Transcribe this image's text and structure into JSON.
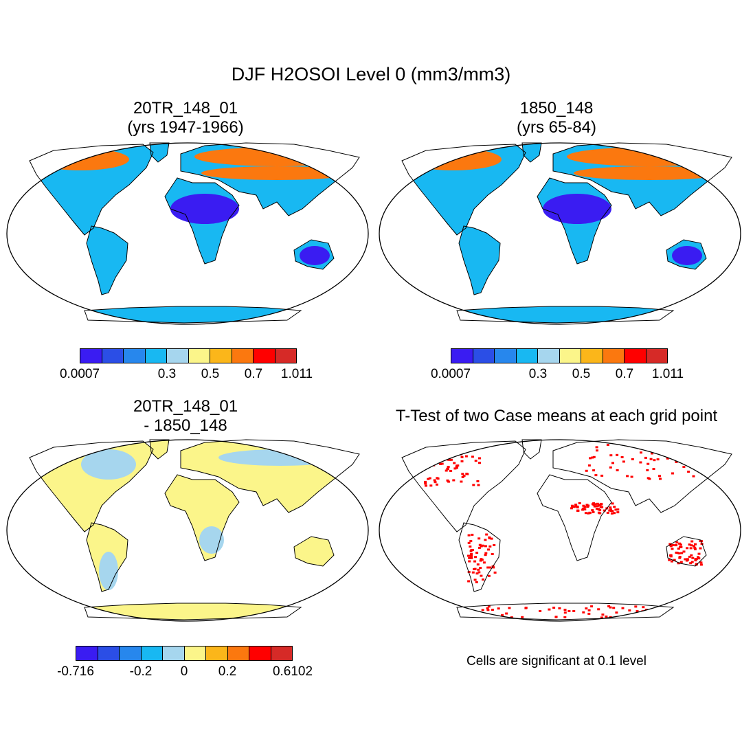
{
  "title": "DJF H2OSOI Level 0 (mm3/mm3)",
  "panels": {
    "top_left": {
      "title_line1": "20TR_148_01",
      "title_line2": "(yrs 1947-1966)"
    },
    "top_right": {
      "title_line1": "1850_148",
      "title_line2": "(yrs 65-84)"
    },
    "bottom_left": {
      "title_line1": "20TR_148_01",
      "title_line2": "- 1850_148"
    },
    "bottom_right": {
      "title": "T-Test of two Case means at each grid point",
      "note": "Cells are significant at 0.1 level",
      "significant_color": "#ff0000"
    }
  },
  "colorbars": {
    "swatch_colors": [
      "#3a1cf2",
      "#2b4ee6",
      "#2787ed",
      "#18b8f2",
      "#a6d6ee",
      "#fbf58a",
      "#fbb61a",
      "#fb780f",
      "#ff0000",
      "#d62a27"
    ],
    "field": {
      "labels": [
        "0.0007",
        "0.3",
        "0.5",
        "0.7",
        "1.011"
      ]
    },
    "difference": {
      "labels": [
        "-0.716",
        "-0.2",
        "0",
        "0.2",
        "0.6102"
      ]
    }
  }
}
